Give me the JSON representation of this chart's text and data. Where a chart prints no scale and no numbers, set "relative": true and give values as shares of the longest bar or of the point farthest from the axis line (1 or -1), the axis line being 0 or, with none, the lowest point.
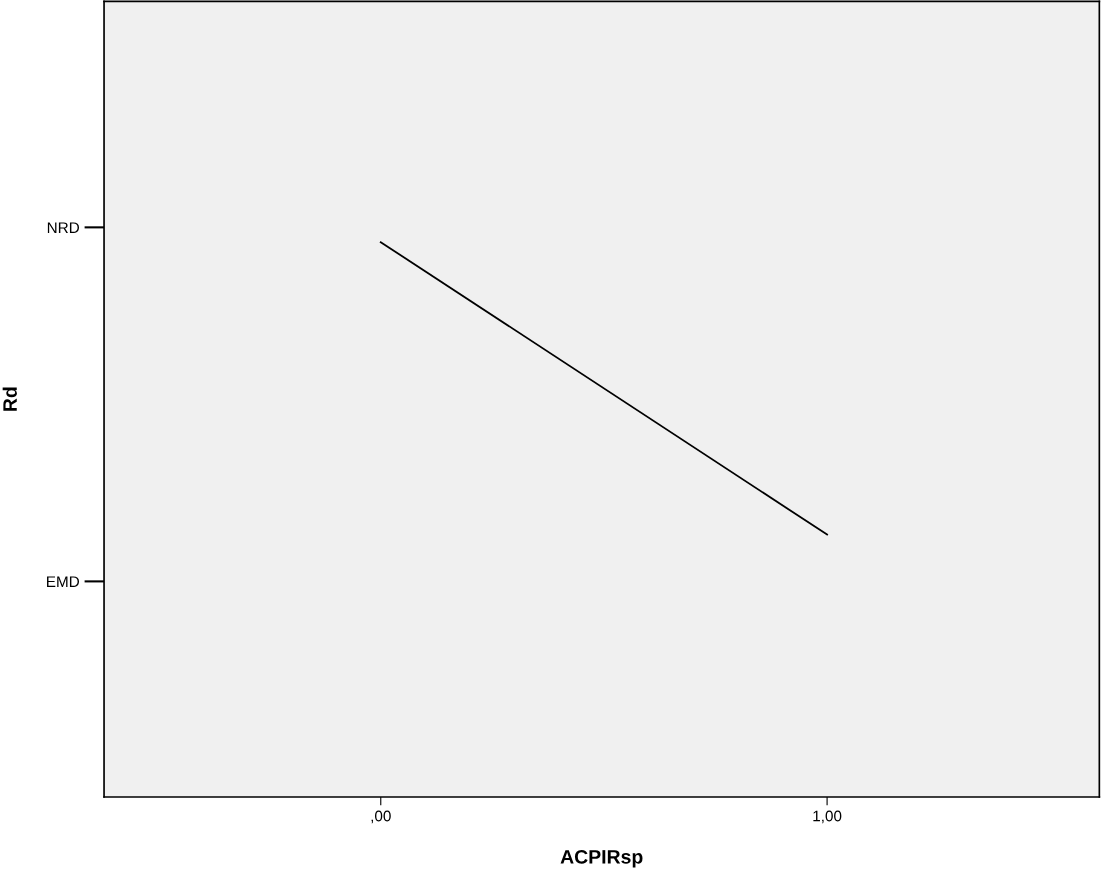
{
  "chart_data": {
    "type": "line",
    "xlabel": "ACPIRsp",
    "ylabel": "Rd",
    "x": [
      0,
      1
    ],
    "series": [
      {
        "color": "#000000",
        "values": [
          1,
          0.473
        ]
      }
    ],
    "relative": true,
    "y_categories": [
      "NRD",
      "EMD"
    ],
    "xlim": [
      -0.62,
      1.61
    ],
    "xticks": [
      {
        "value": 0,
        "label": ",00"
      },
      {
        "value": 1,
        "label": "1,00"
      }
    ],
    "grid": false,
    "legend": false,
    "marker": "none",
    "line_style": "solid"
  }
}
